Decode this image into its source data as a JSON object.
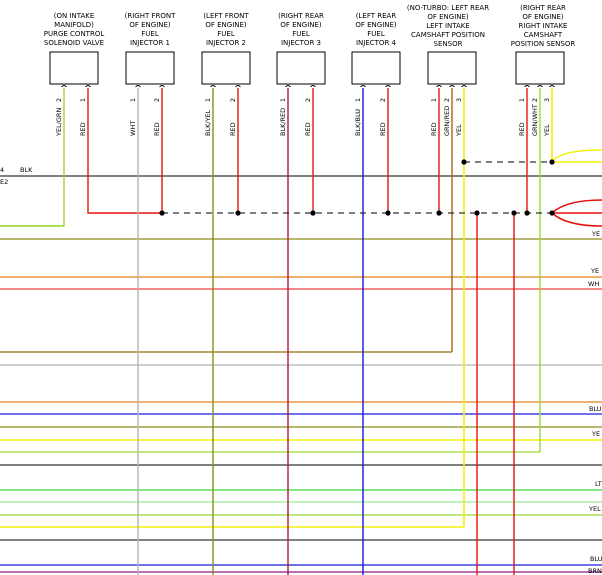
{
  "components": [
    {
      "id": "purge",
      "label": [
        "(ON INTAKE",
        "MANIFOLD)",
        "PURGE CONTROL",
        "SOLENOID VALVE"
      ],
      "pins": [
        {
          "num": "2",
          "wire": "YEL/GRN"
        },
        {
          "num": "1",
          "wire": "RED"
        }
      ]
    },
    {
      "id": "inj1",
      "label": [
        "(RIGHT FRONT",
        "OF ENGINE)",
        "FUEL",
        "INJECTOR 1"
      ],
      "pins": [
        {
          "num": "1",
          "wire": "WHT"
        },
        {
          "num": "2",
          "wire": "RED"
        }
      ]
    },
    {
      "id": "inj2",
      "label": [
        "(LEFT FRONT",
        "OF ENGINE)",
        "FUEL",
        "INJECTOR 2"
      ],
      "pins": [
        {
          "num": "1",
          "wire": "BLK/YEL"
        },
        {
          "num": "2",
          "wire": "RED"
        }
      ]
    },
    {
      "id": "inj3",
      "label": [
        "(RIGHT REAR",
        "OF ENGINE)",
        "FUEL",
        "INJECTOR 3"
      ],
      "pins": [
        {
          "num": "1",
          "wire": "BLK/RED"
        },
        {
          "num": "2",
          "wire": "RED"
        }
      ]
    },
    {
      "id": "inj4",
      "label": [
        "(LEFT REAR",
        "OF ENGINE)",
        "FUEL",
        "INJECTOR 4"
      ],
      "pins": [
        {
          "num": "1",
          "wire": "BLK/BLU"
        },
        {
          "num": "2",
          "wire": "RED"
        }
      ]
    },
    {
      "id": "lcam",
      "label": [
        "(NO-TURBO: LEFT REAR",
        "OF ENGINE)",
        "LEFT INTAKE",
        "CAMSHAFT POSITION",
        "SENSOR"
      ],
      "pins": [
        {
          "num": "1",
          "wire": "RED"
        },
        {
          "num": "2",
          "wire": "GRN/RED"
        },
        {
          "num": "3",
          "wire": "YEL"
        }
      ]
    },
    {
      "id": "rcam",
      "label": [
        "(RIGHT REAR",
        "OF ENGINE)",
        "RIGHT INTAKE",
        "CAMSHAFT",
        "POSITION SENSOR"
      ],
      "pins": [
        {
          "num": "1",
          "wire": "RED"
        },
        {
          "num": "2",
          "wire": "GRN/WHT"
        },
        {
          "num": "3",
          "wire": "YEL"
        }
      ]
    }
  ],
  "left_labels": {
    "line1": "4",
    "line1_wire": "BLK",
    "line2": "E2"
  },
  "right_labels": {
    "yel_a": "YE",
    "yel_b": "YE",
    "wht": "WH",
    "blu": "BLU",
    "yel_c": "YE",
    "lt": "LT",
    "yel_d": "YEL",
    "blu2": "BLU",
    "brn": "BRN"
  },
  "colors": {
    "red": "#e8120e",
    "yellow": "#f2f20a",
    "yelgrn": "#9cd930",
    "blue": "#1a1ad9",
    "green": "#3ad93a",
    "orange": "#e8821a",
    "brown": "#9c6a14",
    "olive": "#8c8c1a",
    "gray": "#b4b4b4",
    "lightblue": "#9cc4e8",
    "black": "#000000",
    "purple": "#8c1a8c",
    "darkred": "#b01a30",
    "lightgreen": "#9ce89c"
  }
}
